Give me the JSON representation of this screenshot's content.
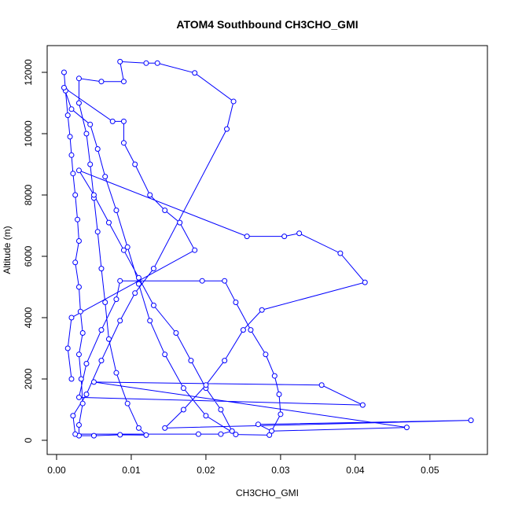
{
  "chart_data": {
    "type": "line",
    "markers": true,
    "title": "ATOM4 Southbound CH3CHO_GMI",
    "x_label": "CH3CHO_GMI",
    "y_label": "Altitude (m)",
    "color": "#0000ff",
    "x": [
      0.001,
      0.0012,
      0.0015,
      0.0018,
      0.002,
      0.0022,
      0.0025,
      0.0028,
      0.003,
      0.0025,
      0.003,
      0.0032,
      0.0035,
      0.003,
      0.0033,
      0.0035,
      0.003,
      0.003,
      0.005,
      0.0085,
      0.012,
      0.011,
      0.0095,
      0.008,
      0.007,
      0.0065,
      0.006,
      0.0055,
      0.005,
      0.0045,
      0.004,
      0.003,
      0.003,
      0.006,
      0.009,
      0.0085,
      0.012,
      0.0135,
      0.0185,
      0.0237,
      0.0228,
      0.013,
      0.0105,
      0.0085,
      0.006,
      0.004,
      0.0022,
      0.0025,
      0.019,
      0.022,
      0.0235,
      0.022,
      0.02,
      0.018,
      0.016,
      0.013,
      0.011,
      0.009,
      0.007,
      0.005,
      0.003,
      0.0255,
      0.0305,
      0.0325,
      0.038,
      0.0413,
      0.0275,
      0.025,
      0.0225,
      0.02,
      0.017,
      0.0145,
      0.0555,
      0.027,
      0.0288,
      0.0469,
      0.005,
      0.0355,
      0.041,
      0.003,
      0.004,
      0.006,
      0.008,
      0.0085,
      0.0195,
      0.0225,
      0.024,
      0.026,
      0.028,
      0.0292,
      0.0298,
      0.03,
      0.0285,
      0.024,
      0.02,
      0.017,
      0.0145,
      0.0125,
      0.011,
      0.0095,
      0.008,
      0.0065,
      0.0055,
      0.0045,
      0.002,
      0.001,
      0.0075,
      0.009,
      0.009,
      0.0105,
      0.0125,
      0.0145,
      0.0165,
      0.0185,
      0.002,
      0.0015,
      0.002
    ],
    "values": [
      12000,
      11400,
      10600,
      9900,
      9300,
      8700,
      8000,
      7200,
      6500,
      5800,
      5000,
      4200,
      3500,
      2800,
      2000,
      1200,
      500,
      150,
      150,
      180,
      170,
      400,
      1200,
      2200,
      3300,
      4500,
      5600,
      6800,
      7900,
      9000,
      10000,
      11000,
      11800,
      11700,
      11700,
      12350,
      12300,
      12300,
      11980,
      11050,
      10150,
      5600,
      4800,
      3900,
      2600,
      1500,
      800,
      200,
      200,
      200,
      300,
      1000,
      1700,
      2600,
      3500,
      4400,
      5300,
      6200,
      7100,
      8000,
      8800,
      6650,
      6650,
      6750,
      6100,
      5150,
      4250,
      3600,
      2600,
      1800,
      1000,
      400,
      650,
      520,
      300,
      420,
      1900,
      1800,
      1150,
      1400,
      2500,
      3600,
      4600,
      5200,
      5200,
      5200,
      4500,
      3600,
      2800,
      2100,
      1500,
      850,
      170,
      190,
      800,
      1700,
      2800,
      3900,
      5100,
      6300,
      7500,
      8600,
      9500,
      10300,
      10800,
      11500,
      10400,
      10400,
      9700,
      9000,
      8000,
      7500,
      7100,
      6200,
      4000,
      3000,
      2000
    ],
    "xlim": [
      -0.00126,
      0.0577
    ],
    "ylim": [
      -462,
      12872
    ],
    "xticks": [
      {
        "value": 0,
        "label": "0.00"
      },
      0.01,
      0.02,
      0.03,
      0.04,
      0.05
    ],
    "yticks": [
      0,
      2000,
      4000,
      6000,
      8000,
      10000,
      12000
    ]
  }
}
